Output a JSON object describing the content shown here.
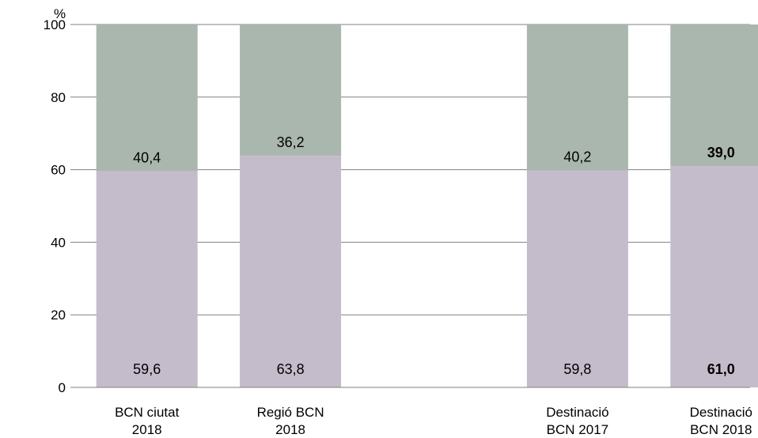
{
  "chart_data": {
    "type": "bar",
    "stacked": true,
    "unit_label": "%",
    "ylim": [
      0,
      100
    ],
    "yticks": [
      "0",
      "20",
      "40",
      "60",
      "80",
      "100"
    ],
    "grid": true,
    "categories": [
      [
        "BCN ciutat",
        "2018"
      ],
      [
        "Regió BCN",
        "2018"
      ],
      [
        "Destinació",
        "BCN 2017"
      ],
      [
        "Destinació",
        "BCN 2018"
      ]
    ],
    "category_slots": [
      0,
      1,
      3,
      4
    ],
    "series": [
      {
        "values": [
          59.6,
          63.8,
          59.8,
          61.0
        ],
        "labels": [
          "59,6",
          "63,8",
          "59,8",
          "61,0"
        ],
        "bold": [
          false,
          false,
          false,
          true
        ],
        "color": "#c4bccb"
      },
      {
        "values": [
          40.4,
          36.2,
          40.2,
          39.0
        ],
        "labels": [
          "40,4",
          "36,2",
          "40,2",
          "39,0"
        ],
        "bold": [
          false,
          false,
          false,
          true
        ],
        "color": "#aab7ae"
      }
    ]
  }
}
